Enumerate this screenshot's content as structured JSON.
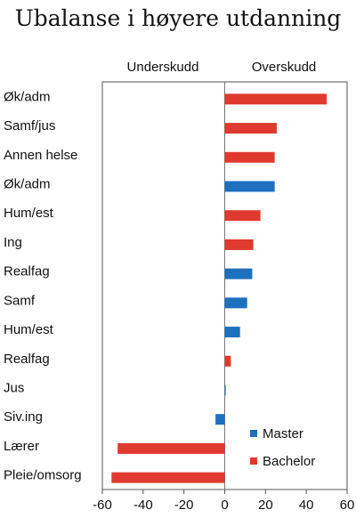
{
  "chart_data": {
    "type": "bar",
    "orientation": "horizontal",
    "title": "Ubalanse i høyere utdanning",
    "region_labels": {
      "left": "Underskudd",
      "right": "Overskudd"
    },
    "xlim": [
      -60,
      60
    ],
    "xticks": [
      -60,
      -40,
      -20,
      0,
      20,
      40,
      60
    ],
    "legend_placement": "bottom-right",
    "colors": {
      "Master": "#1f6fbf",
      "Bachelor": "#e03a2f"
    },
    "bars": [
      {
        "category": "Øk/adm",
        "series": "Bachelor",
        "value": 50
      },
      {
        "category": "Samf/jus",
        "series": "Bachelor",
        "value": 25.5
      },
      {
        "category": "Annen helse",
        "series": "Bachelor",
        "value": 24.5
      },
      {
        "category": "Øk/adm",
        "series": "Master",
        "value": 24.5
      },
      {
        "category": "Hum/est",
        "series": "Bachelor",
        "value": 17.5
      },
      {
        "category": "Ing",
        "series": "Bachelor",
        "value": 14
      },
      {
        "category": "Realfag",
        "series": "Master",
        "value": 13.5
      },
      {
        "category": "Samf",
        "series": "Master",
        "value": 11
      },
      {
        "category": "Hum/est",
        "series": "Master",
        "value": 7.5
      },
      {
        "category": "Realfag",
        "series": "Bachelor",
        "value": 3
      },
      {
        "category": "Jus",
        "series": "Master",
        "value": 0.5
      },
      {
        "category": "Siv.ing",
        "series": "Master",
        "value": -4.5
      },
      {
        "category": "Lærer",
        "series": "Bachelor",
        "value": -52.5
      },
      {
        "category": "Pleie/omsorg",
        "series": "Bachelor",
        "value": -55.5
      }
    ],
    "legend": [
      "Master",
      "Bachelor"
    ]
  }
}
